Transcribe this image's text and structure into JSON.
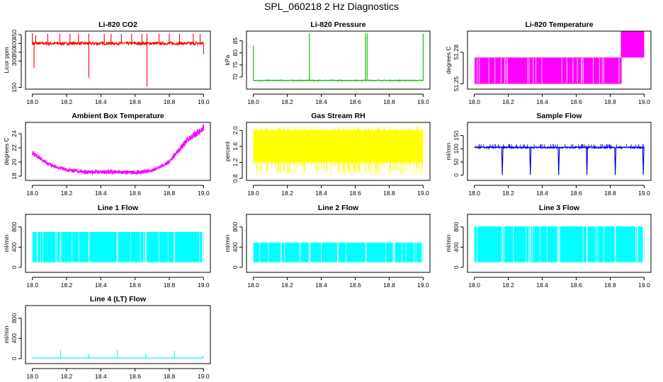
{
  "page": {
    "title": "SPL_060218  2 Hz Diagnostics"
  },
  "chart_data": [
    {
      "type": "line",
      "title": "Li-820 CO2",
      "xlabel": "",
      "ylabel": "Licor ppm",
      "xlim": [
        18.0,
        19.0
      ],
      "ylim": [
        140,
        470
      ],
      "xticks": [
        18.0,
        18.2,
        18.4,
        18.6,
        18.8,
        19.0
      ],
      "xtick_labels": [
        "18.0",
        "18.2",
        "18.4",
        "18.6",
        "18.8",
        "19.0"
      ],
      "yticks": [
        150,
        300,
        350,
        400,
        450
      ],
      "ytick_labels": [
        "150",
        "300",
        "350",
        "400",
        "450"
      ],
      "color": "#ff0000",
      "series": [
        {
          "name": "CO2",
          "baseline": 400,
          "noise": 8,
          "spikes": [
            [
              18.0,
              460
            ],
            [
              18.01,
              260
            ],
            [
              18.02,
              445
            ],
            [
              18.09,
              455
            ],
            [
              18.16,
              455
            ],
            [
              18.22,
              455
            ],
            [
              18.27,
              455
            ],
            [
              18.33,
              455
            ],
            [
              18.33,
              205
            ],
            [
              18.42,
              455
            ],
            [
              18.46,
              455
            ],
            [
              18.52,
              455
            ],
            [
              18.58,
              455
            ],
            [
              18.64,
              455
            ],
            [
              18.67,
              455
            ],
            [
              18.67,
              155
            ],
            [
              18.74,
              455
            ],
            [
              18.8,
              455
            ],
            [
              18.86,
              455
            ],
            [
              18.94,
              455
            ],
            [
              18.98,
              455
            ],
            [
              19.0,
              340
            ]
          ]
        }
      ]
    },
    {
      "type": "line",
      "title": "Li-820 Pressure",
      "xlabel": "",
      "ylabel": "kPa",
      "xlim": [
        18.0,
        19.0
      ],
      "ylim": [
        65,
        89
      ],
      "xticks": [
        18.0,
        18.2,
        18.4,
        18.6,
        18.8,
        19.0
      ],
      "xtick_labels": [
        "18.0",
        "18.2",
        "18.4",
        "18.6",
        "18.8",
        "19.0"
      ],
      "yticks": [
        70,
        75,
        80,
        85
      ],
      "ytick_labels": [
        "70",
        "75",
        "80",
        "85"
      ],
      "color": "#00bb00",
      "series": [
        {
          "name": "Pressure",
          "baseline": 68.6,
          "noise": 0.15,
          "spikes": [
            [
              18.0,
              83
            ],
            [
              18.33,
              88
            ],
            [
              18.66,
              88
            ],
            [
              18.67,
              88
            ],
            [
              19.0,
              88
            ]
          ]
        }
      ]
    },
    {
      "type": "line",
      "title": "Li-820 Temperature",
      "xlabel": "",
      "ylabel": "degrees C",
      "xlim": [
        18.0,
        19.0
      ],
      "ylim": [
        51.245,
        51.3
      ],
      "xticks": [
        18.0,
        18.2,
        18.4,
        18.6,
        18.8,
        19.0
      ],
      "xtick_labels": [
        "18.0",
        "18.2",
        "18.4",
        "18.6",
        "18.8",
        "19.0"
      ],
      "yticks": [
        51.25,
        51.28
      ],
      "ytick_labels": [
        "51.25",
        "51.28"
      ],
      "color": "#ff00ff",
      "series": [
        {
          "name": "Temperature",
          "levels": [
            51.25,
            51.275,
            51.3
          ],
          "switch_at": 18.865
        }
      ]
    },
    {
      "type": "line",
      "title": "Ambient Box Temperature",
      "xlabel": "",
      "ylabel": "degrees C",
      "xlim": [
        18.0,
        19.0
      ],
      "ylim": [
        17.4,
        25.6
      ],
      "xticks": [
        18.0,
        18.2,
        18.4,
        18.6,
        18.8,
        19.0
      ],
      "xtick_labels": [
        "18.0",
        "18.2",
        "18.4",
        "18.6",
        "18.8",
        "19.0"
      ],
      "yticks": [
        18,
        20,
        22,
        24
      ],
      "ytick_labels": [
        "18",
        "20",
        "22",
        "24"
      ],
      "color": "#ff00ff",
      "series": [
        {
          "name": "Ambient",
          "x": [
            18.0,
            18.1,
            18.2,
            18.3,
            18.4,
            18.5,
            18.6,
            18.7,
            18.8,
            18.9,
            19.0
          ],
          "y": [
            21.3,
            19.6,
            18.9,
            18.6,
            18.6,
            18.6,
            18.5,
            18.8,
            20.0,
            23.0,
            24.8
          ]
        }
      ]
    },
    {
      "type": "line",
      "title": "Gas Stream RH",
      "xlabel": "",
      "ylabel": "percent",
      "xlim": [
        18.0,
        19.0
      ],
      "ylim": [
        0.75,
        2.2
      ],
      "xticks": [
        18.0,
        18.2,
        18.4,
        18.6,
        18.8,
        19.0
      ],
      "xtick_labels": [
        "18.0",
        "18.2",
        "18.4",
        "18.6",
        "18.8",
        "19.0"
      ],
      "yticks": [
        0.8,
        1.2,
        1.6,
        2.0
      ],
      "ytick_labels": [
        "0.8",
        "1.2",
        "1.6",
        "2.0"
      ],
      "color": "#ffff00",
      "series": [
        {
          "name": "RH",
          "band": [
            1.2,
            2.0
          ],
          "min": 0.85,
          "max": 2.1
        }
      ]
    },
    {
      "type": "line",
      "title": "Sample Flow",
      "xlabel": "",
      "ylabel": "ml/min",
      "xlim": [
        18.0,
        19.0
      ],
      "ylim": [
        -20,
        200
      ],
      "xticks": [
        18.0,
        18.2,
        18.4,
        18.6,
        18.8,
        19.0
      ],
      "xtick_labels": [
        "18.0",
        "18.2",
        "18.4",
        "18.6",
        "18.8",
        "19.0"
      ],
      "yticks": [
        0,
        50,
        100,
        150
      ],
      "ytick_labels": [
        "0",
        "50",
        "100",
        "150"
      ],
      "color": "#0000dd",
      "series": [
        {
          "name": "Sample",
          "baseline": 105,
          "noise": 3,
          "dips": [
            18.165,
            18.33,
            18.497,
            18.663,
            18.83,
            18.995
          ]
        }
      ]
    },
    {
      "type": "line",
      "title": "Line 1 Flow",
      "xlabel": "",
      "ylabel": "ml/min",
      "xlim": [
        18.0,
        19.0
      ],
      "ylim": [
        -100,
        1050
      ],
      "xticks": [
        18.0,
        18.2,
        18.4,
        18.6,
        18.8,
        19.0
      ],
      "xtick_labels": [
        "18.0",
        "18.2",
        "18.4",
        "18.6",
        "18.8",
        "19.0"
      ],
      "yticks": [
        0,
        400,
        800
      ],
      "ytick_labels": [
        "0",
        "400",
        "800"
      ],
      "color": "#00ffff",
      "series": [
        {
          "name": "Line 1",
          "band": [
            100,
            700
          ],
          "gaps": [
            18.165,
            18.33,
            18.497,
            18.663,
            18.83,
            18.995
          ]
        }
      ]
    },
    {
      "type": "line",
      "title": "Line 2 Flow",
      "xlabel": "",
      "ylabel": "ml/min",
      "xlim": [
        18.0,
        19.0
      ],
      "ylim": [
        -100,
        1050
      ],
      "xticks": [
        18.0,
        18.2,
        18.4,
        18.6,
        18.8,
        19.0
      ],
      "xtick_labels": [
        "18.0",
        "18.2",
        "18.4",
        "18.6",
        "18.8",
        "19.0"
      ],
      "yticks": [
        0,
        400,
        800
      ],
      "ytick_labels": [
        "0",
        "400",
        "800"
      ],
      "color": "#00ffff",
      "series": [
        {
          "name": "Line 2",
          "band": [
            100,
            490
          ],
          "gaps": [
            18.165,
            18.33,
            18.497,
            18.663,
            18.83,
            18.995
          ]
        }
      ]
    },
    {
      "type": "line",
      "title": "Line 3 Flow",
      "xlabel": "",
      "ylabel": "ml/min",
      "xlim": [
        18.0,
        19.0
      ],
      "ylim": [
        -100,
        1050
      ],
      "xticks": [
        18.0,
        18.2,
        18.4,
        18.6,
        18.8,
        19.0
      ],
      "xtick_labels": [
        "18.0",
        "18.2",
        "18.4",
        "18.6",
        "18.8",
        "19.0"
      ],
      "yticks": [
        0,
        400,
        800
      ],
      "ytick_labels": [
        "0",
        "400",
        "800"
      ],
      "color": "#00ffff",
      "series": [
        {
          "name": "Line 3",
          "band": [
            100,
            810
          ],
          "gaps": [
            18.165,
            18.33,
            18.497,
            18.663,
            18.83,
            18.995
          ]
        }
      ]
    },
    {
      "type": "line",
      "title": "Line 4 (LT) Flow",
      "xlabel": "",
      "ylabel": "ml/min",
      "xlim": [
        18.0,
        19.0
      ],
      "ylim": [
        -100,
        1050
      ],
      "xticks": [
        18.0,
        18.2,
        18.4,
        18.6,
        18.8,
        19.0
      ],
      "xtick_labels": [
        "18.0",
        "18.2",
        "18.4",
        "18.6",
        "18.8",
        "19.0"
      ],
      "yticks": [
        0,
        400,
        800
      ],
      "ytick_labels": [
        "0",
        "400",
        "800"
      ],
      "color": "#00ffff",
      "series": [
        {
          "name": "Line 4",
          "baseline": 10,
          "spikes": [
            [
              18.165,
              170
            ],
            [
              18.33,
              90
            ],
            [
              18.497,
              170
            ],
            [
              18.663,
              100
            ],
            [
              18.83,
              150
            ],
            [
              18.995,
              60
            ]
          ]
        }
      ]
    }
  ]
}
